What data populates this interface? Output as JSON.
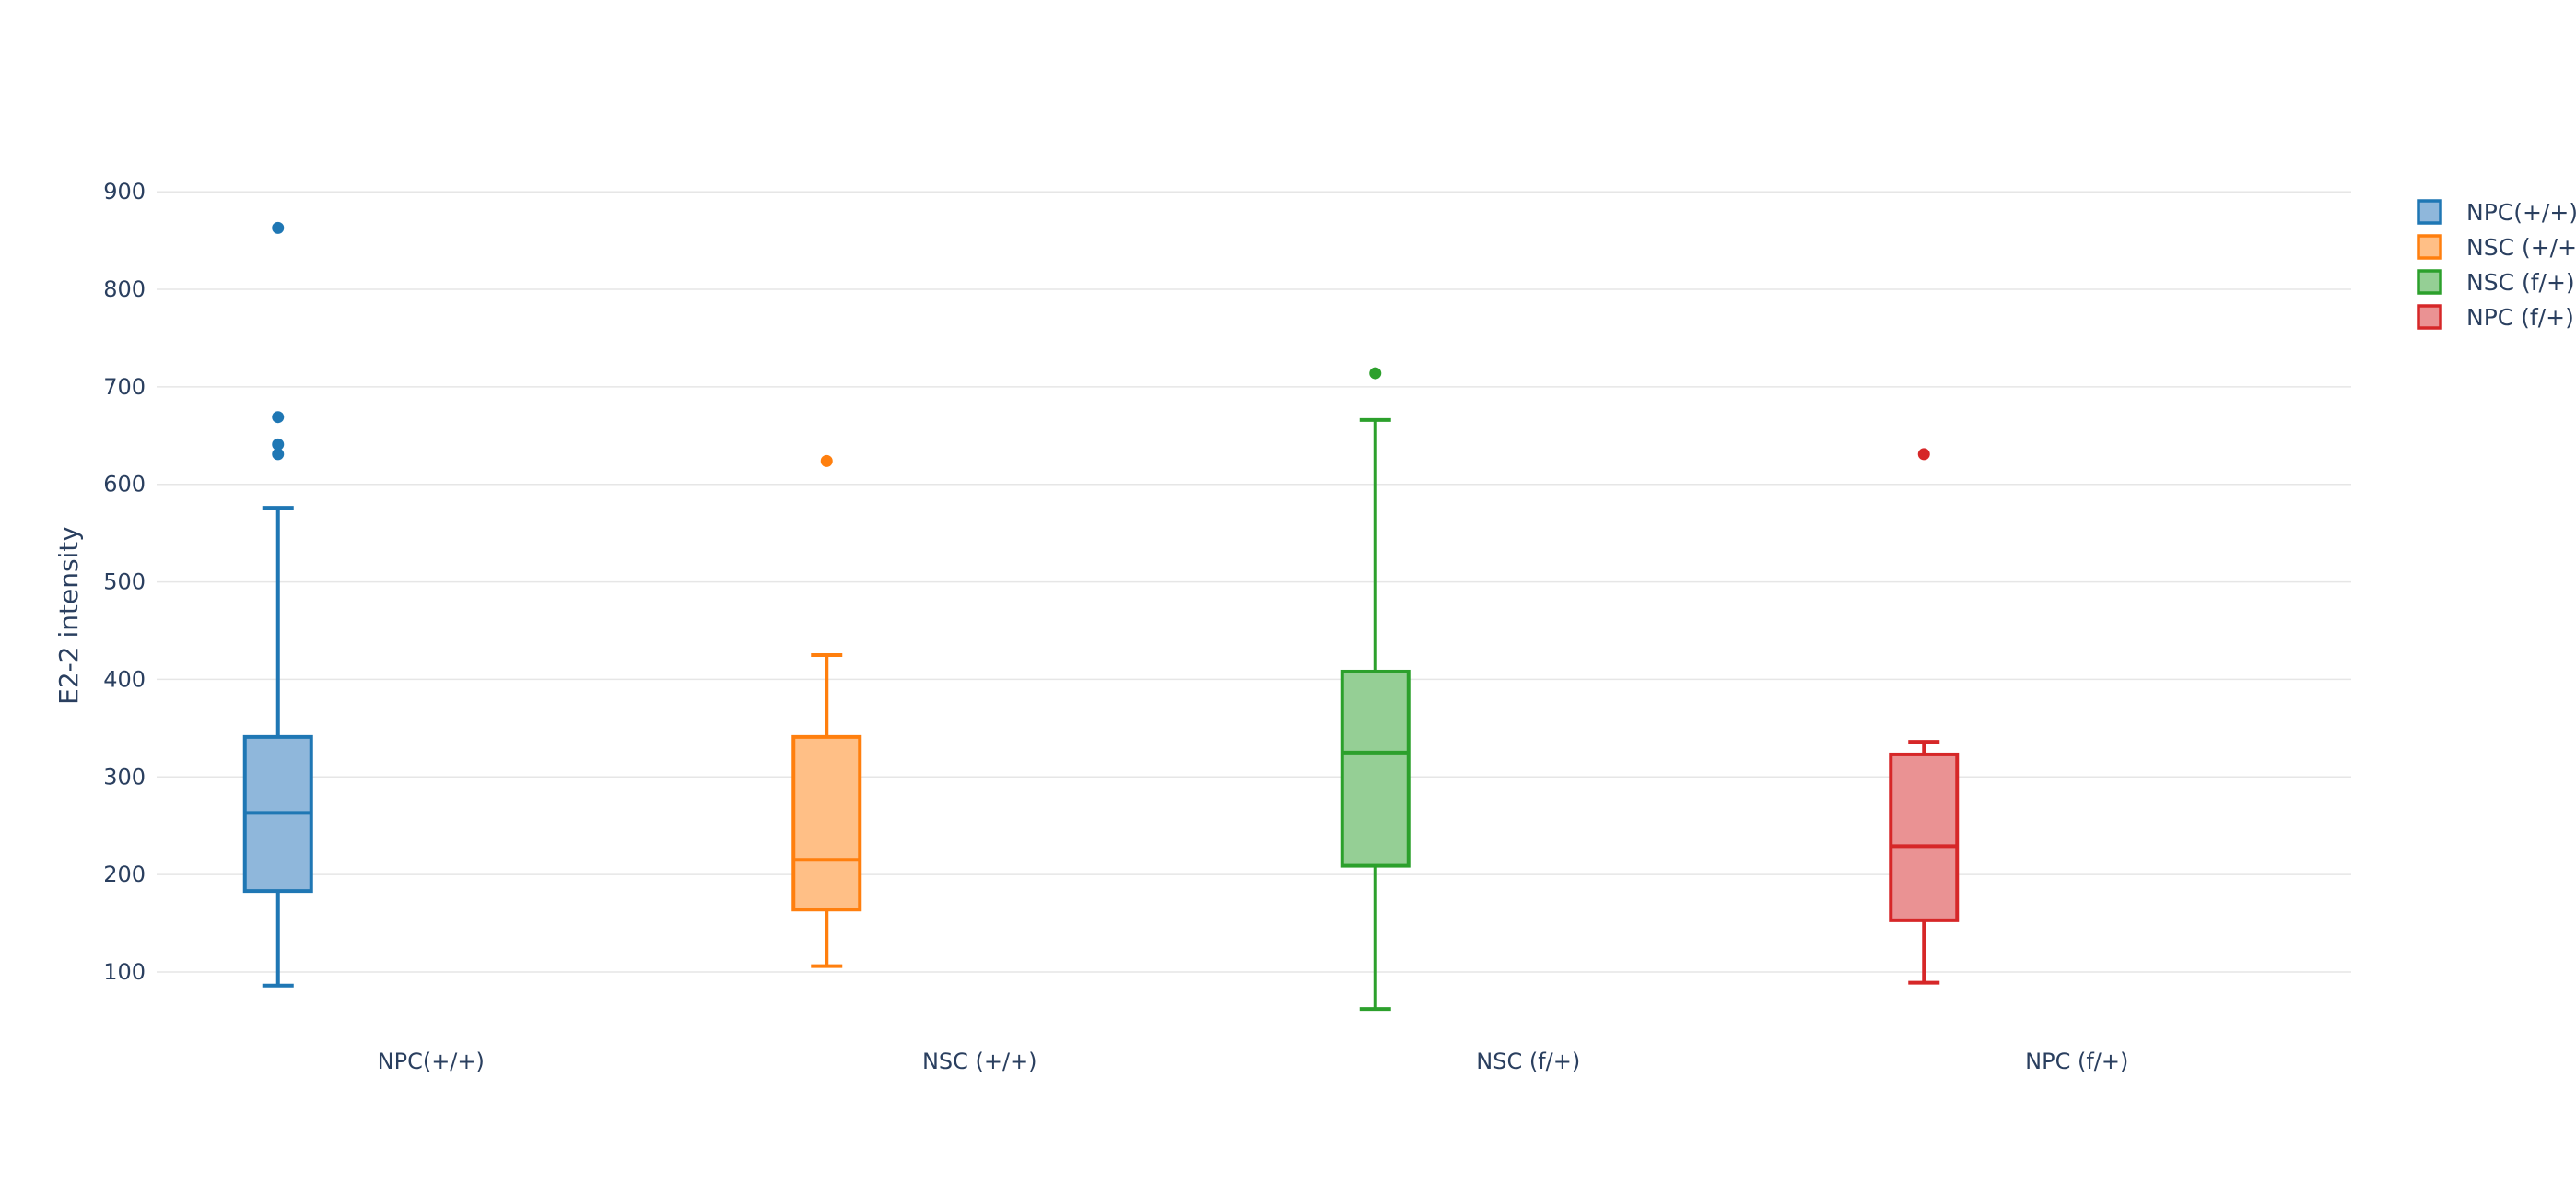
{
  "chart_data": {
    "type": "box",
    "title": "",
    "xlabel": "",
    "ylabel": "E2-2 intensity",
    "ylim": [
      48,
      955
    ],
    "yticks": [
      100,
      200,
      300,
      400,
      500,
      600,
      700,
      800,
      900
    ],
    "grid": true,
    "legend_position": "top-right",
    "series": [
      {
        "name": "NPC(+/+)",
        "category_label": "NPC(+/+)",
        "color": "#1f77b4",
        "fill": "#8fb7db",
        "whisker_low": 86,
        "q1": 183,
        "median": 263,
        "q3": 341,
        "whisker_high": 576,
        "outliers": [
          631,
          641,
          669,
          863
        ]
      },
      {
        "name": "NSC (+/+)",
        "category_label": "NSC (+/+)",
        "color": "#ff7f0e",
        "fill": "#ffbf86",
        "whisker_low": 106,
        "q1": 164,
        "median": 215,
        "q3": 341,
        "whisker_high": 425,
        "outliers": [
          624
        ]
      },
      {
        "name": "NSC (f/+)",
        "category_label": "NSC (f/+)",
        "color": "#2ca02c",
        "fill": "#95cf95",
        "whisker_low": 62,
        "q1": 209,
        "median": 325,
        "q3": 408,
        "whisker_high": 666,
        "outliers": [
          714
        ]
      },
      {
        "name": "NPC (f/+)",
        "category_label": "NPC (f/+)",
        "color": "#d62728",
        "fill": "#ea9293",
        "whisker_low": 89,
        "q1": 153,
        "median": 229,
        "q3": 323,
        "whisker_high": 336,
        "outliers": [
          631
        ]
      }
    ]
  }
}
